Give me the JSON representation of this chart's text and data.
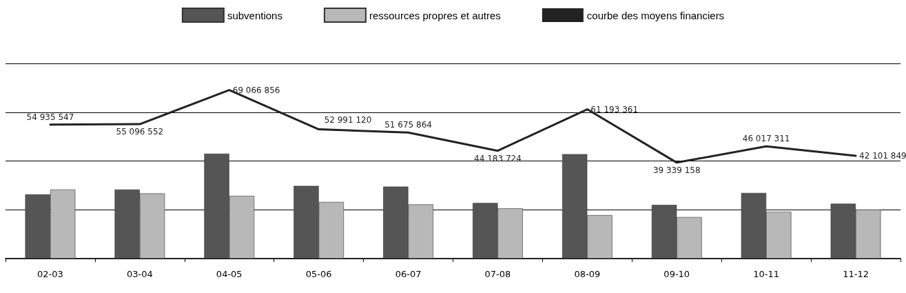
{
  "chart_data": {
    "type": "bar",
    "categories": [
      "02-03",
      "03-04",
      "04-05",
      "05-06",
      "06-07",
      "07-08",
      "08-09",
      "09-10",
      "10-11",
      "11-12"
    ],
    "series": [
      {
        "name": "subventions",
        "color": "#555555",
        "values": [
          26300000,
          28300000,
          43000000,
          29800000,
          29500000,
          22800000,
          42800000,
          22000000,
          26900000,
          22500000
        ]
      },
      {
        "name": "ressources propres et autres",
        "color": "#b8b8b8",
        "values": [
          28300000,
          26700000,
          25700000,
          23200000,
          22200000,
          20600000,
          17800000,
          17000000,
          19200000,
          20100000
        ]
      },
      {
        "name": "courbe des moyens financiers",
        "type": "line",
        "color": "#222222",
        "values": [
          54935547,
          55096552,
          69066856,
          52991120,
          51675864,
          44183724,
          61193361,
          39339158,
          46017311,
          42101849
        ],
        "value_labels": [
          "54 935 547",
          "55 096 552",
          "69 066 856",
          "52 991 120",
          "51 675 864",
          "44 183 724",
          "61 193 361",
          "39 339 158",
          "46 017 311",
          "42 101 849"
        ]
      }
    ],
    "ylim": [
      0,
      80000000
    ],
    "yticks": [
      {
        "value": 0,
        "label": null
      },
      {
        "value": 20000000,
        "label": null
      },
      {
        "value": 40000000,
        "label": null
      },
      {
        "value": 60000000,
        "label": null
      },
      {
        "value": 80000000,
        "label": null
      }
    ],
    "tick_labels": "x",
    "grid": "y",
    "legend": "top",
    "marker": "none",
    "line_style": "solid"
  }
}
